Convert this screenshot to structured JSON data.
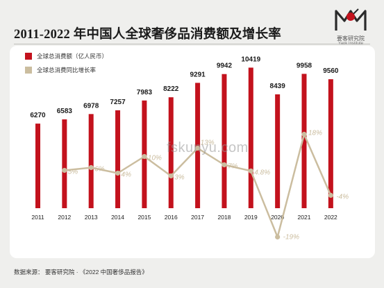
{
  "title": "2011-2022 年中国人全球奢侈品消费额及增长率",
  "logo": {
    "name": "要客研究院",
    "sub": "Yaok Institute"
  },
  "legend": [
    "全球总消费额（亿人民币）",
    "全球总消费同比增长率"
  ],
  "footer": "数据来源：  要客研究院 · 《2022 中国奢侈品报告》",
  "watermark": "fskunyu.com",
  "colors": {
    "bar": "#c3121d",
    "line": "#cbbd9f",
    "rate_text": "#cbbd9f",
    "background": "#efefed",
    "card": "#ffffff"
  },
  "chart_data": {
    "type": "bar",
    "categories": [
      "2011",
      "2012",
      "2013",
      "2014",
      "2015",
      "2016",
      "2017",
      "2018",
      "2019",
      "2020",
      "2021",
      "2022"
    ],
    "series": [
      {
        "name": "全球总消费额（亿人民币）",
        "type": "bar",
        "values": [
          6270,
          6583,
          6978,
          7257,
          7983,
          8222,
          9291,
          9942,
          10419,
          8439,
          9958,
          9560
        ],
        "labels": [
          "6270",
          "6583",
          "6978",
          "7257",
          "7983",
          "8222",
          "9291",
          "9942",
          "10419",
          "8439",
          "9958",
          "9560"
        ]
      },
      {
        "name": "全球总消费同比增长率",
        "type": "line",
        "values": [
          null,
          5,
          6,
          4,
          10,
          3,
          13,
          7,
          4.8,
          -19,
          18,
          -4
        ],
        "labels": [
          "",
          "5%",
          "6%",
          "4%",
          "10%",
          "3%",
          "13%",
          "7%",
          "4.8%",
          "-19%",
          "18%",
          "-4%"
        ]
      }
    ]
  }
}
